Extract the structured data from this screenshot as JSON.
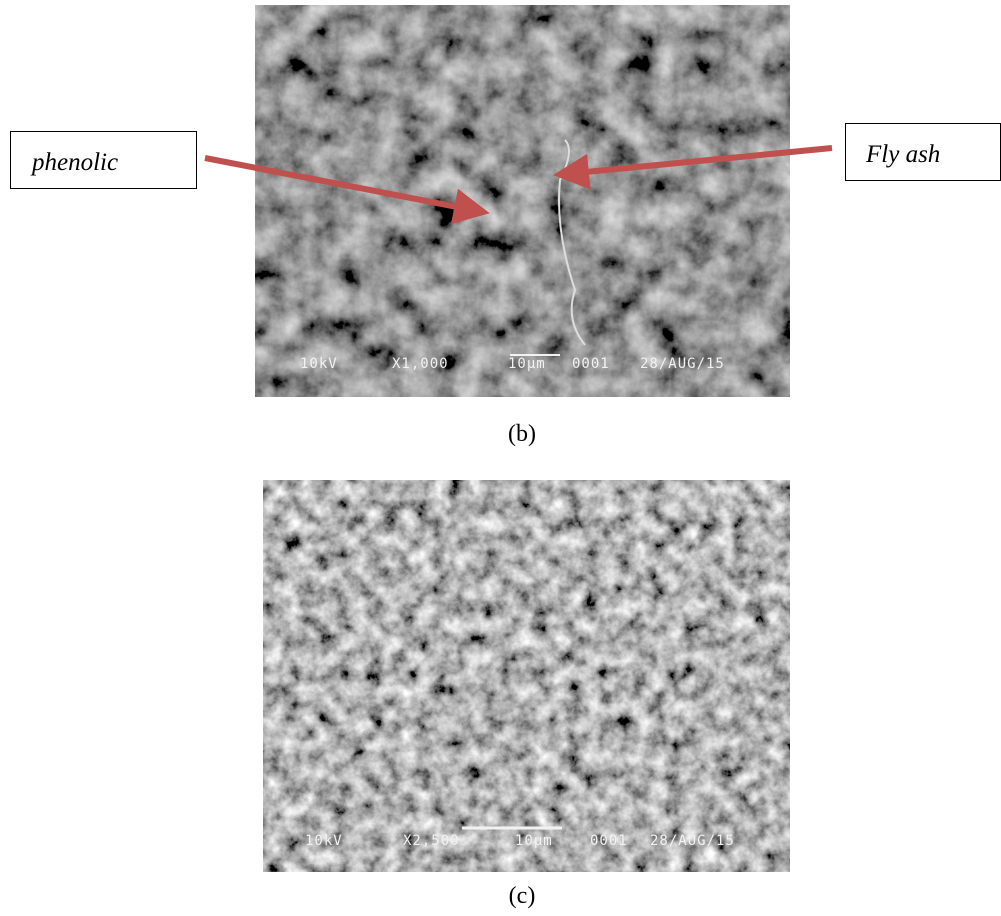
{
  "figure": {
    "panels": [
      {
        "label": "(b)",
        "annotations": [
          "phenolic",
          "Fly ash"
        ],
        "overlay": [
          "10kV",
          "X1,000",
          "10µm",
          "0001",
          "28/AUG/15"
        ]
      },
      {
        "label": "(c)",
        "overlay": [
          "10kV",
          "X2,500",
          "10µm",
          "0001",
          "28/AUG/15"
        ]
      }
    ]
  }
}
